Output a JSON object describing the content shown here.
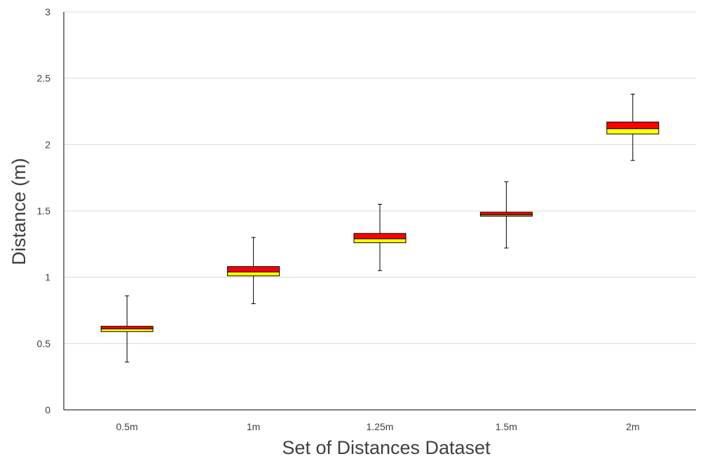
{
  "chart_data": {
    "type": "box",
    "title": "",
    "xlabel": "Set of Distances Dataset",
    "ylabel": "Distance (m)",
    "ylim": [
      0,
      3
    ],
    "yticks": [
      "0",
      "0.5",
      "1",
      "1.5",
      "2",
      "2.5",
      "3"
    ],
    "grid": "horizontal",
    "categories": [
      "0.5m",
      "1m",
      "1.25m",
      "1.5m",
      "2m"
    ],
    "series": [
      {
        "min": [
          0.36,
          0.8,
          1.05,
          1.22,
          1.88
        ],
        "q1": [
          0.59,
          1.01,
          1.26,
          1.46,
          2.08
        ],
        "median": [
          0.61,
          1.04,
          1.29,
          1.47,
          2.12
        ],
        "q3": [
          0.63,
          1.08,
          1.33,
          1.49,
          2.17
        ],
        "max": [
          0.86,
          1.3,
          1.55,
          1.72,
          2.38
        ]
      }
    ],
    "colors": {
      "lower_box": "#FFFF00",
      "upper_box": "#FF0000",
      "box_outline": "#000000",
      "whisker": "#000000",
      "grid": "#D9D9D9",
      "axis": "#000000",
      "text": "#404040"
    }
  }
}
